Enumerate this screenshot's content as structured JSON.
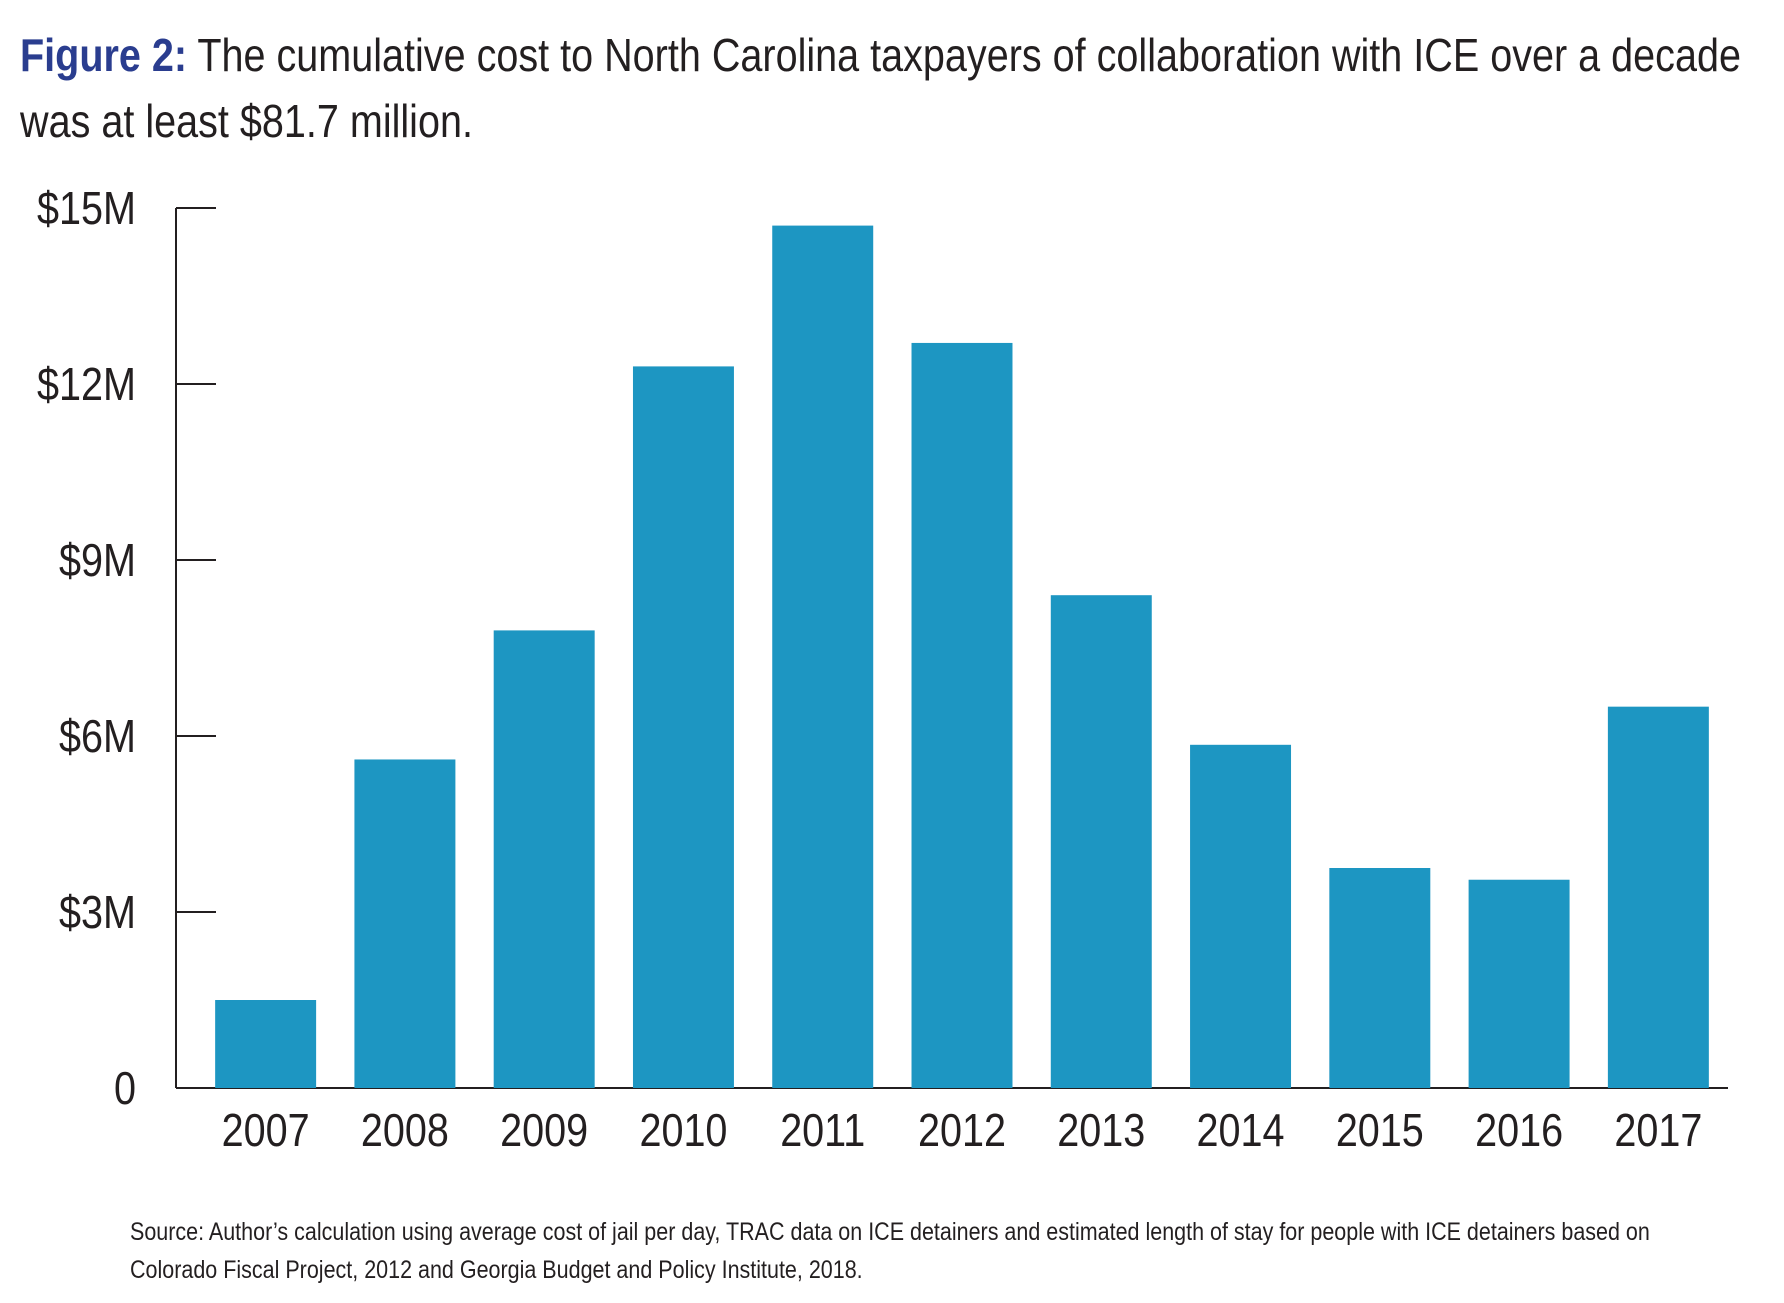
{
  "header": {
    "figure_label": "Figure 2:",
    "title": "The cumulative cost to North Carolina taxpayers of collaboration with ICE over a decade was at least $81.7 million."
  },
  "footer": {
    "source": "Source: Author’s calculation using average cost of jail per day, TRAC data on ICE detainers and estimated length of stay for people with ICE detainers based on Colorado Fiscal Project, 2012 and Georgia Budget and Policy Institute, 2018."
  },
  "colors": {
    "bar": "#1d96c2",
    "figure_label": "#2a3d8f",
    "axis": "#231f20"
  },
  "chart_data": {
    "type": "bar",
    "title": "The cumulative cost to North Carolina taxpayers of collaboration with ICE over a decade was at least $81.7 million.",
    "xlabel": "",
    "ylabel": "",
    "categories": [
      "2007",
      "2008",
      "2009",
      "2010",
      "2011",
      "2012",
      "2013",
      "2014",
      "2015",
      "2016",
      "2017"
    ],
    "values": [
      1.5,
      5.6,
      7.8,
      12.3,
      14.7,
      12.7,
      8.4,
      5.85,
      3.75,
      3.55,
      6.5
    ],
    "unit": "millions of dollars",
    "ylim": [
      0,
      15
    ],
    "y_ticks": [
      0,
      3,
      6,
      9,
      12,
      15
    ],
    "y_tick_labels": [
      "0",
      "$3M",
      "$6M",
      "$9M",
      "$12M",
      "$15M"
    ],
    "grid": false,
    "legend": "none"
  }
}
